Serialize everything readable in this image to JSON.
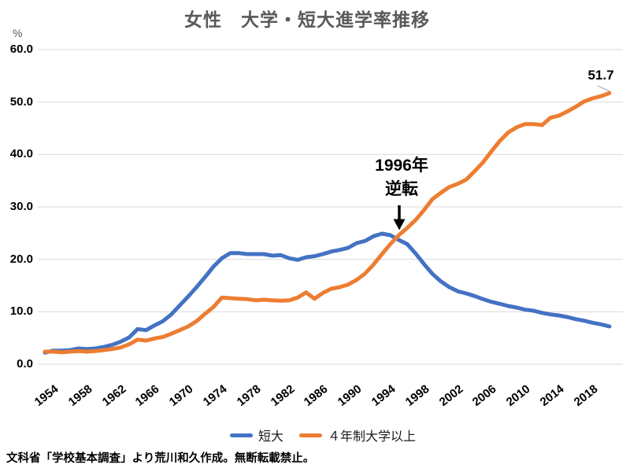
{
  "title": "女性　大学・短大進学率推移",
  "y_axis_unit": "%",
  "annotation": {
    "line1": "1996年",
    "line2": "逆転",
    "arrow": "down-arrow"
  },
  "end_label": "51.7",
  "footer": "文科省「学校基本調査」より荒川和久作成。無断転載禁止。",
  "legend": {
    "items": [
      {
        "label": "短大",
        "color": "#4472C4"
      },
      {
        "label": "４年制大学以上",
        "color": "#ED7D31"
      }
    ]
  },
  "colors": {
    "tandai_blue": "#4472C4",
    "daigaku_orange": "#ED7D31",
    "gridline": "#D9D9D9",
    "title_text": "#595959",
    "leader_line": "#A6A6A6"
  },
  "chart_data": {
    "type": "line",
    "title": "女性　大学・短大進学率推移",
    "xlabel": "",
    "ylabel": "%",
    "x_start": 1954,
    "x_end": 2021,
    "ylim": [
      0,
      60
    ],
    "grid": "horizontal",
    "legend_position": "bottom",
    "y_ticks": [
      "60.0",
      "50.0",
      "40.0",
      "30.0",
      "20.0",
      "10.0",
      "0.0"
    ],
    "x_ticks": [
      1954,
      1958,
      1962,
      1966,
      1970,
      1974,
      1978,
      1982,
      1986,
      1990,
      1994,
      1998,
      2002,
      2006,
      2010,
      2014,
      2018
    ],
    "annotation": {
      "text": "1996年 逆転",
      "year": 1996,
      "note": "crossover point marked with down arrow"
    },
    "end_label": {
      "series": "４年制大学以上",
      "value": 51.7
    },
    "series": [
      {
        "name": "短大",
        "color": "#4472C4",
        "values": [
          2.2,
          2.6,
          2.6,
          2.7,
          3.0,
          2.9,
          3.0,
          3.3,
          3.7,
          4.3,
          5.1,
          6.7,
          6.5,
          7.4,
          8.2,
          9.5,
          11.2,
          12.9,
          14.7,
          16.6,
          18.6,
          20.2,
          21.2,
          21.2,
          21.0,
          21.0,
          21.0,
          20.7,
          20.8,
          20.2,
          19.9,
          20.4,
          20.6,
          21.0,
          21.5,
          21.8,
          22.2,
          23.1,
          23.5,
          24.4,
          24.9,
          24.6,
          23.7,
          22.9,
          21.1,
          19.1,
          17.2,
          15.8,
          14.7,
          13.9,
          13.5,
          13.0,
          12.4,
          11.9,
          11.5,
          11.1,
          10.8,
          10.4,
          10.2,
          9.8,
          9.5,
          9.3,
          9.0,
          8.6,
          8.3,
          7.9,
          7.6,
          7.2
        ]
      },
      {
        "name": "４年制大学以上",
        "color": "#ED7D31",
        "values": [
          2.4,
          2.4,
          2.3,
          2.4,
          2.5,
          2.4,
          2.5,
          2.7,
          2.9,
          3.2,
          3.8,
          4.7,
          4.5,
          4.9,
          5.2,
          5.8,
          6.5,
          7.2,
          8.2,
          9.6,
          10.9,
          12.7,
          12.6,
          12.5,
          12.4,
          12.2,
          12.3,
          12.2,
          12.1,
          12.2,
          12.7,
          13.7,
          12.5,
          13.6,
          14.4,
          14.7,
          15.2,
          16.1,
          17.3,
          19.0,
          21.0,
          22.9,
          24.6,
          26.0,
          27.5,
          29.4,
          31.5,
          32.7,
          33.8,
          34.4,
          35.2,
          36.8,
          38.5,
          40.6,
          42.6,
          44.2,
          45.2,
          45.8,
          45.8,
          45.6,
          47.0,
          47.4,
          48.2,
          49.1,
          50.1,
          50.7,
          51.1,
          51.7
        ]
      }
    ]
  }
}
